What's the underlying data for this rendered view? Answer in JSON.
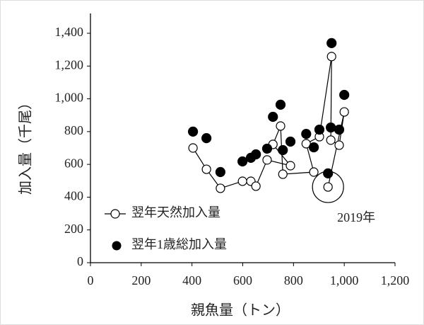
{
  "chart_data": {
    "type": "scatter",
    "xlabel": "親魚量（トン）",
    "ylabel": "加入量（千尾）",
    "xlim": [
      0,
      1200
    ],
    "ylim": [
      0,
      1400
    ],
    "xticks": [
      0,
      200,
      400,
      600,
      800,
      {
        "value": 1000,
        "label": "1,000"
      },
      {
        "value": 1200,
        "label": "1,200"
      }
    ],
    "yticks": [
      0,
      200,
      400,
      600,
      800,
      {
        "value": 1000,
        "label": "1,000"
      },
      {
        "value": 1200,
        "label": "1,200"
      },
      {
        "value": 1400,
        "label": "1,400"
      }
    ],
    "annotation": {
      "text": "2019年",
      "x": 936,
      "y": 462
    },
    "series": [
      {
        "name": "翌年天然加入量",
        "color": "#ffffff",
        "connect": true,
        "x": [
          404,
          457,
          512,
          599,
          632,
          652,
          696,
          788,
          719,
          749,
          758,
          880,
          850,
          902,
          950,
          947,
          980,
          1000,
          936
        ],
        "values": [
          700,
          570,
          454,
          497,
          497,
          467,
          627,
          592,
          722,
          834,
          540,
          553,
          726,
          769,
          1258,
          748,
          717,
          920,
          462
        ]
      },
      {
        "name": "翌年1歳総加入量",
        "color": "#000000",
        "connect": false,
        "x": [
          404,
          457,
          512,
          599,
          632,
          652,
          696,
          719,
          749,
          758,
          788,
          850,
          880,
          902,
          936,
          950,
          947,
          980,
          1000
        ],
        "values": [
          800,
          760,
          553,
          618,
          640,
          661,
          696,
          890,
          964,
          687,
          739,
          786,
          704,
          812,
          545,
          1340,
          825,
          812,
          1024
        ]
      }
    ]
  }
}
